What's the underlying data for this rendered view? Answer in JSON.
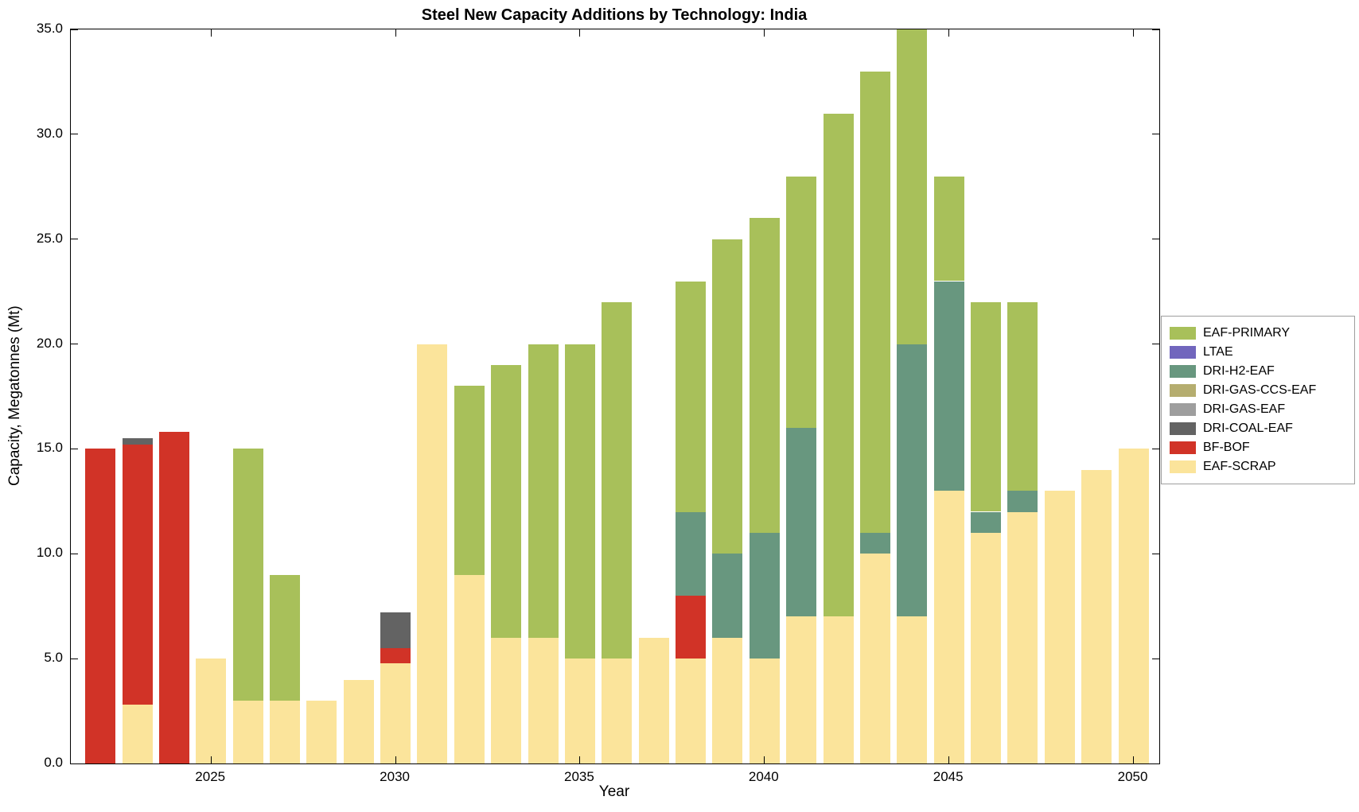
{
  "chart_data": {
    "type": "bar",
    "stacked": true,
    "title": "Steel New Capacity Additions by Technology: India",
    "xlabel": "Year",
    "ylabel": "Capacity, Megatonnes (Mt)",
    "ylim": [
      0,
      35
    ],
    "ytick_step": 5,
    "ytick_decimals": 1,
    "xlim": [
      2021.2,
      2050.7
    ],
    "xticks": [
      2025,
      2030,
      2035,
      2040,
      2045,
      2050
    ],
    "bar_width_years": 0.82,
    "grid": false,
    "legend_position": "right-outside",
    "x": [
      2022,
      2023,
      2024,
      2025,
      2026,
      2027,
      2028,
      2029,
      2030,
      2031,
      2032,
      2033,
      2034,
      2035,
      2036,
      2037,
      2038,
      2039,
      2040,
      2041,
      2042,
      2043,
      2044,
      2045,
      2046,
      2047,
      2048,
      2049,
      2050
    ],
    "series": [
      {
        "name": "EAF-SCRAP",
        "color": "#fbe49b",
        "values": [
          0,
          2.8,
          0,
          5,
          3,
          3,
          3,
          4,
          4.8,
          20,
          9,
          6,
          6,
          5,
          5,
          6,
          5,
          6,
          5,
          7,
          7,
          10,
          7,
          13,
          11,
          12,
          13,
          14,
          15
        ]
      },
      {
        "name": "BF-BOF",
        "color": "#d13327",
        "values": [
          15,
          12.4,
          15.8,
          0,
          0,
          0,
          0,
          0,
          0.7,
          0,
          0,
          0,
          0,
          0,
          0,
          0,
          3,
          0,
          0,
          0,
          0,
          0,
          0,
          0,
          0,
          0,
          0,
          0,
          0
        ]
      },
      {
        "name": "DRI-COAL-EAF",
        "color": "#636363",
        "values": [
          0,
          0.3,
          0,
          0,
          0,
          0,
          0,
          0,
          1.7,
          0,
          0,
          0,
          0,
          0,
          0,
          0,
          0,
          0,
          0,
          0,
          0,
          0,
          0,
          0,
          0,
          0,
          0,
          0,
          0
        ]
      },
      {
        "name": "DRI-GAS-EAF",
        "color": "#9e9e9e",
        "values": [
          0,
          0,
          0,
          0,
          0,
          0,
          0,
          0,
          0,
          0,
          0,
          0,
          0,
          0,
          0,
          0,
          0,
          0,
          0,
          0,
          0,
          0,
          0,
          0,
          0,
          0,
          0,
          0,
          0
        ]
      },
      {
        "name": "DRI-GAS-CCS-EAF",
        "color": "#b5ad6f",
        "values": [
          0,
          0,
          0,
          0,
          0,
          0,
          0,
          0,
          0,
          0,
          0,
          0,
          0,
          0,
          0,
          0,
          0,
          0,
          0,
          0,
          0,
          0,
          0,
          0,
          0,
          0,
          0,
          0,
          0
        ]
      },
      {
        "name": "DRI-H2-EAF",
        "color": "#68977f",
        "values": [
          0,
          0,
          0,
          0,
          0,
          0,
          0,
          0,
          0,
          0,
          0,
          0,
          0,
          0,
          0,
          0,
          4,
          4,
          6,
          9,
          0,
          1,
          13,
          10,
          1,
          1,
          0,
          0,
          0
        ]
      },
      {
        "name": "LTAE",
        "color": "#7166bd",
        "values": [
          0,
          0,
          0,
          0,
          0,
          0,
          0,
          0,
          0,
          0,
          0,
          0,
          0,
          0,
          0,
          0,
          0,
          0,
          0,
          0,
          0,
          0,
          0,
          0,
          0,
          0,
          0,
          0,
          0
        ]
      },
      {
        "name": "EAF-PRIMARY",
        "color": "#a8c05a",
        "values": [
          0,
          0,
          0,
          0,
          12,
          6,
          0,
          0,
          0,
          0,
          9,
          13,
          14,
          15,
          17,
          0,
          11,
          15,
          15,
          12,
          24,
          22,
          15,
          5,
          10,
          9,
          0,
          0,
          0
        ]
      }
    ],
    "legend": [
      "EAF-PRIMARY",
      "LTAE",
      "DRI-H2-EAF",
      "DRI-GAS-CCS-EAF",
      "DRI-GAS-EAF",
      "DRI-COAL-EAF",
      "BF-BOF",
      "EAF-SCRAP"
    ]
  }
}
